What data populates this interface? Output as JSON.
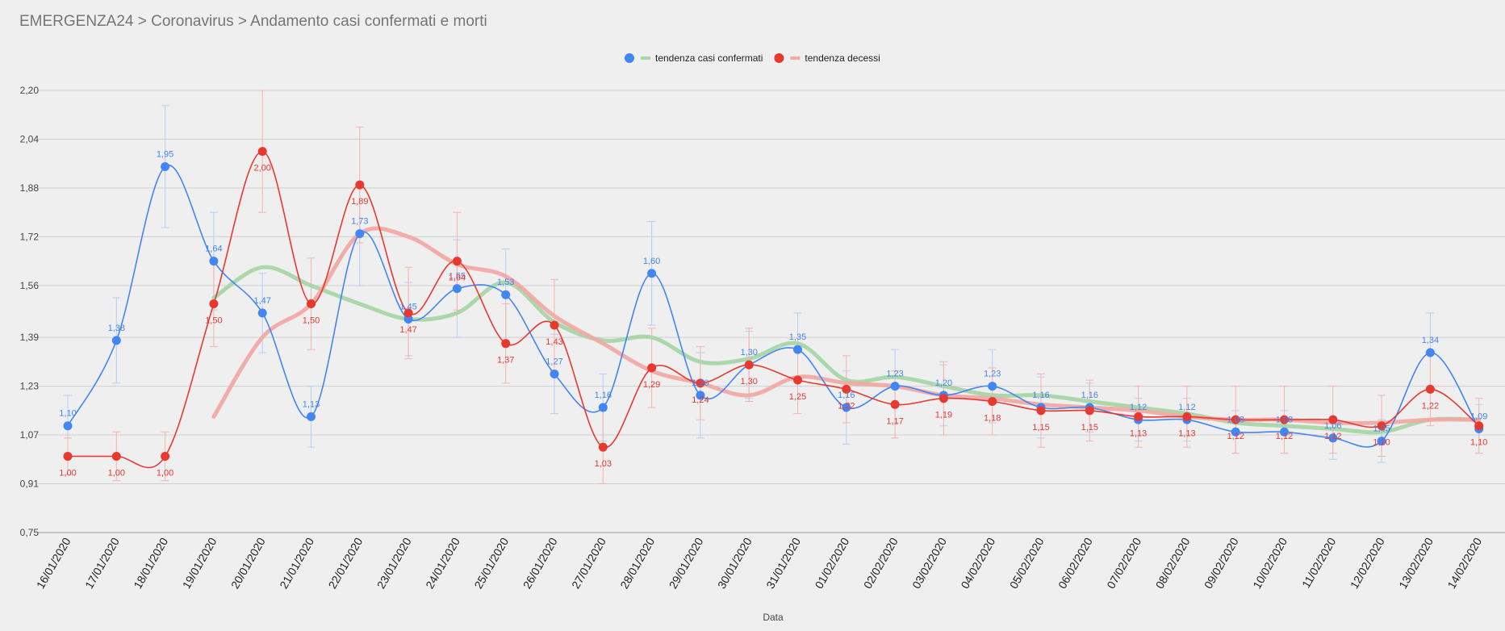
{
  "header": {
    "breadcrumb": "EMERGENZA24 > Coronavirus > Andamento casi confermati e morti"
  },
  "chart_data": {
    "type": "line",
    "title": "",
    "xlabel": "Data",
    "ylabel": "",
    "ylim": [
      0.75,
      2.2
    ],
    "y_ticks": [
      0.75,
      0.91,
      1.07,
      1.23,
      1.39,
      1.56,
      1.72,
      1.88,
      2.04,
      2.2
    ],
    "y_tick_labels": [
      "0,75",
      "0,91",
      "1,07",
      "1,23",
      "1,39",
      "1,56",
      "1,72",
      "1,88",
      "2,04",
      "2,20"
    ],
    "grid": true,
    "legend_position": "top-center",
    "legend": [
      {
        "label": "",
        "marker": "dot",
        "color": "#4285f4"
      },
      {
        "label": "tendenza casi confermati",
        "marker": "line",
        "color": "#a8d5a7"
      },
      {
        "label": "",
        "marker": "dot",
        "color": "#e8392f"
      },
      {
        "label": "tendenza decessi",
        "marker": "line",
        "color": "#f0a9a4"
      }
    ],
    "categories": [
      "16/01/2020",
      "17/01/2020",
      "18/01/2020",
      "19/01/2020",
      "20/01/2020",
      "21/01/2020",
      "22/01/2020",
      "23/01/2020",
      "24/01/2020",
      "25/01/2020",
      "26/01/2020",
      "27/01/2020",
      "28/01/2020",
      "29/01/2020",
      "30/01/2020",
      "31/01/2020",
      "01/02/2020",
      "02/02/2020",
      "03/02/2020",
      "04/02/2020",
      "05/02/2020",
      "06/02/2020",
      "07/02/2020",
      "08/02/2020",
      "09/02/2020",
      "10/02/2020",
      "11/02/2020",
      "12/02/2020",
      "13/02/2020",
      "14/02/2020"
    ],
    "series": [
      {
        "role": "casi",
        "color": "#4285f4",
        "values": [
          1.1,
          1.38,
          1.95,
          1.64,
          1.47,
          1.13,
          1.73,
          1.45,
          1.55,
          1.53,
          1.27,
          1.16,
          1.6,
          1.2,
          1.3,
          1.35,
          1.16,
          1.23,
          1.2,
          1.23,
          1.16,
          1.16,
          1.12,
          1.12,
          1.08,
          1.08,
          1.06,
          1.05,
          1.34,
          1.09
        ],
        "labels": [
          "1,10",
          "1,38",
          "1,95",
          "1,64",
          "1,47",
          "1,13",
          "1,73",
          "1,45",
          "1,55",
          "1,53",
          "1,27",
          "1,16",
          "1,60",
          "1,20",
          "1,30",
          "1,35",
          "1,16",
          "1,23",
          "1,20",
          "1,23",
          "1,16",
          "1,16",
          "1,12",
          "1,12",
          "1,08",
          "1,08",
          "1,06",
          "1,05",
          "1,34",
          "1,09"
        ],
        "error": [
          0.1,
          0.14,
          0.2,
          0.16,
          0.13,
          0.1,
          0.17,
          0.12,
          0.16,
          0.15,
          0.13,
          0.11,
          0.17,
          0.14,
          0.11,
          0.12,
          0.12,
          0.12,
          0.1,
          0.12,
          0.1,
          0.08,
          0.07,
          0.07,
          0.07,
          0.07,
          0.07,
          0.07,
          0.13,
          0.08
        ]
      },
      {
        "role": "decessi",
        "color": "#e8392f",
        "values": [
          1.0,
          1.0,
          1.0,
          1.5,
          2.0,
          1.5,
          1.89,
          1.47,
          1.64,
          1.37,
          1.43,
          1.03,
          1.29,
          1.24,
          1.3,
          1.25,
          1.22,
          1.17,
          1.19,
          1.18,
          1.15,
          1.15,
          1.13,
          1.13,
          1.12,
          1.12,
          1.12,
          1.1,
          1.22,
          1.1
        ],
        "labels": [
          "1,00",
          "1,00",
          "1,00",
          "1,50",
          "2,00",
          "1,50",
          "1,89",
          "1,47",
          "1,64",
          "1,37",
          "1,43",
          "1,03",
          "1,29",
          "1,24",
          "1,30",
          "1,25",
          "1,22",
          "1,17",
          "1,19",
          "1,18",
          "1,15",
          "1,15",
          "1,13",
          "1,13",
          "1,12",
          "1,12",
          "1,12",
          "1,10",
          "1,22",
          "1,10"
        ],
        "error": [
          0.06,
          0.08,
          0.08,
          0.14,
          0.2,
          0.15,
          0.19,
          0.15,
          0.16,
          0.13,
          0.15,
          0.12,
          0.13,
          0.12,
          0.12,
          0.11,
          0.11,
          0.11,
          0.12,
          0.11,
          0.12,
          0.1,
          0.1,
          0.1,
          0.11,
          0.11,
          0.11,
          0.1,
          0.12,
          0.09
        ]
      },
      {
        "name": "tendenza casi confermati",
        "color": "#a8d5a7",
        "values": [
          null,
          null,
          null,
          1.52,
          1.62,
          1.56,
          1.5,
          1.45,
          1.47,
          1.57,
          1.44,
          1.38,
          1.39,
          1.31,
          1.32,
          1.37,
          1.25,
          1.26,
          1.23,
          1.2,
          1.2,
          1.18,
          1.16,
          1.14,
          1.11,
          1.1,
          1.09,
          1.08,
          1.12,
          1.12
        ]
      },
      {
        "name": "tendenza decessi",
        "color": "#f0a9a4",
        "values": [
          null,
          null,
          null,
          1.13,
          1.39,
          1.5,
          1.73,
          1.72,
          1.63,
          1.59,
          1.46,
          1.37,
          1.28,
          1.24,
          1.2,
          1.26,
          1.24,
          1.23,
          1.2,
          1.19,
          1.17,
          1.16,
          1.15,
          1.13,
          1.12,
          1.12,
          1.11,
          1.11,
          1.12,
          1.12
        ]
      }
    ]
  }
}
